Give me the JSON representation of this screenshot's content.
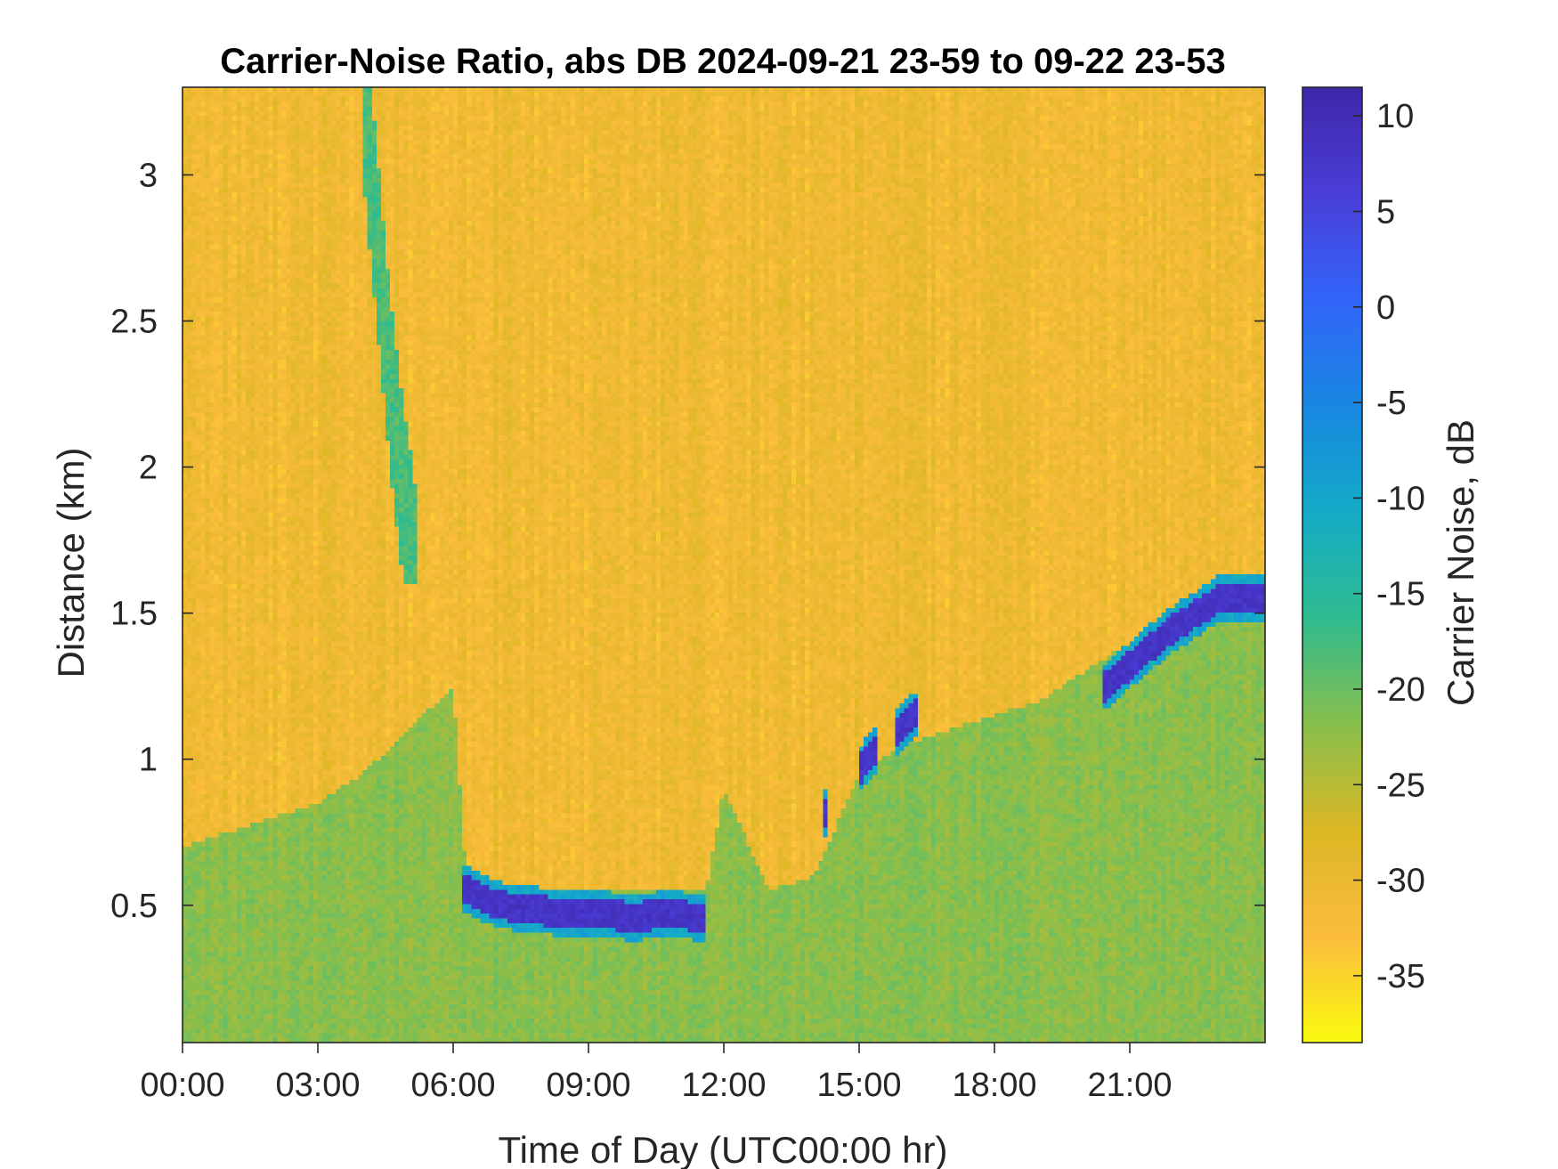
{
  "chart_data": {
    "type": "heatmap",
    "title": "Carrier-Noise Ratio, abs DB 2024-09-21 23-59 to 09-22 23-53",
    "xlabel": "Time of Day (UTC00:00 hr)",
    "ylabel": "Distance (km)",
    "xlim_hours": [
      0,
      24
    ],
    "ylim_km": [
      0.03,
      3.3
    ],
    "x_ticks": [
      {
        "value": 0,
        "label": "00:00"
      },
      {
        "value": 3,
        "label": "03:00"
      },
      {
        "value": 6,
        "label": "06:00"
      },
      {
        "value": 9,
        "label": "09:00"
      },
      {
        "value": 12,
        "label": "12:00"
      },
      {
        "value": 15,
        "label": "15:00"
      },
      {
        "value": 18,
        "label": "18:00"
      },
      {
        "value": 21,
        "label": "21:00"
      }
    ],
    "y_ticks": [
      {
        "value": 0.5,
        "label": "0.5"
      },
      {
        "value": 1,
        "label": "1"
      },
      {
        "value": 1.5,
        "label": "1.5"
      },
      {
        "value": 2,
        "label": "2"
      },
      {
        "value": 2.5,
        "label": "2.5"
      },
      {
        "value": 3,
        "label": "3"
      }
    ],
    "colorbar": {
      "label": "Carrier Noise, dB",
      "range": [
        -38.5,
        11.5
      ],
      "ticks": [
        {
          "value": 10,
          "label": "10"
        },
        {
          "value": 5,
          "label": "5"
        },
        {
          "value": 0,
          "label": "0"
        },
        {
          "value": -5,
          "label": "-5"
        },
        {
          "value": -10,
          "label": "-10"
        },
        {
          "value": -15,
          "label": "-15"
        },
        {
          "value": -20,
          "label": "-20"
        },
        {
          "value": -25,
          "label": "-25"
        },
        {
          "value": -30,
          "label": "-30"
        },
        {
          "value": -35,
          "label": "-35"
        }
      ],
      "colormap": [
        "#f9fb0e",
        "#fbbc3d",
        "#dcb725",
        "#87bf4c",
        "#2fbb8f",
        "#14abc7",
        "#1887e1",
        "#3265fa",
        "#4a3ed7",
        "#3e26a8"
      ]
    },
    "background_db": -31,
    "boundary_layer": {
      "comment_free": true,
      "time_hours": [
        0,
        1,
        2,
        3,
        4,
        5,
        6,
        6.3,
        8,
        10,
        11.6,
        12,
        13,
        14,
        15,
        16,
        17,
        18,
        19,
        20,
        21,
        22,
        23,
        24
      ],
      "top_km": [
        0.7,
        0.75,
        0.8,
        0.85,
        0.95,
        1.1,
        1.25,
        0.58,
        0.55,
        0.55,
        0.55,
        0.9,
        0.55,
        0.6,
        0.95,
        1.05,
        1.1,
        1.15,
        1.2,
        1.3,
        1.4,
        1.5,
        1.55,
        1.55
      ],
      "db": -22
    },
    "cloud_layer": {
      "time_hours": [
        6.2,
        7,
        8,
        9,
        10,
        11,
        11.6,
        14.2,
        15.2,
        16.2,
        20.5,
        21.2,
        22,
        22.5,
        23,
        24
      ],
      "height_km": [
        0.56,
        0.5,
        0.48,
        0.47,
        0.46,
        0.47,
        0.45,
        0.8,
        1.0,
        1.15,
        1.25,
        1.35,
        1.45,
        1.5,
        1.55,
        1.55
      ],
      "segments": [
        [
          6.2,
          11.6
        ],
        [
          14.2,
          14.3
        ],
        [
          15.0,
          15.4
        ],
        [
          15.8,
          16.3
        ],
        [
          20.4,
          24
        ]
      ],
      "db": 8
    },
    "plume": {
      "time_hours": [
        4.0,
        4.3,
        4.6,
        4.9,
        5.2
      ],
      "height_km": [
        3.3,
        2.8,
        2.3,
        1.9,
        1.6
      ],
      "db": -18
    }
  }
}
